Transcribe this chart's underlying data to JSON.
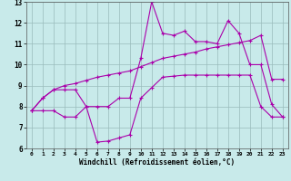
{
  "xlabel": "Windchill (Refroidissement éolien,°C)",
  "bg_color": "#c8eaea",
  "grid_color": "#99bbbb",
  "line_color": "#aa00aa",
  "xlim_min": -0.5,
  "xlim_max": 23.5,
  "ylim_min": 6,
  "ylim_max": 13,
  "yticks": [
    6,
    7,
    8,
    9,
    10,
    11,
    12,
    13
  ],
  "xticks": [
    0,
    1,
    2,
    3,
    4,
    5,
    6,
    7,
    8,
    9,
    10,
    11,
    12,
    13,
    14,
    15,
    16,
    17,
    18,
    19,
    20,
    21,
    22,
    23
  ],
  "line1_x": [
    0,
    1,
    2,
    3,
    4,
    5,
    6,
    7,
    8,
    9,
    10,
    11,
    12,
    13,
    14,
    15,
    16,
    17,
    18,
    19,
    20,
    21,
    22,
    23
  ],
  "line1_y": [
    7.8,
    8.4,
    8.8,
    8.8,
    8.8,
    8.0,
    8.0,
    8.0,
    8.4,
    8.4,
    10.3,
    13.0,
    11.5,
    11.4,
    11.6,
    11.1,
    11.1,
    11.0,
    12.1,
    11.5,
    10.0,
    10.0,
    8.1,
    7.5
  ],
  "line2_x": [
    0,
    1,
    2,
    3,
    4,
    5,
    6,
    7,
    8,
    9,
    10,
    11,
    12,
    13,
    14,
    15,
    16,
    17,
    18,
    19,
    20,
    21,
    22,
    23
  ],
  "line2_y": [
    7.8,
    8.4,
    8.8,
    9.0,
    9.1,
    9.25,
    9.4,
    9.5,
    9.6,
    9.7,
    9.9,
    10.1,
    10.3,
    10.4,
    10.5,
    10.6,
    10.75,
    10.85,
    10.95,
    11.05,
    11.15,
    11.4,
    9.3,
    9.3
  ],
  "line3_x": [
    0,
    1,
    2,
    3,
    4,
    5,
    6,
    7,
    8,
    9,
    10,
    11,
    12,
    13,
    14,
    15,
    16,
    17,
    18,
    19,
    20,
    21,
    22,
    23
  ],
  "line3_y": [
    7.8,
    7.8,
    7.8,
    7.5,
    7.5,
    8.0,
    6.3,
    6.35,
    6.5,
    6.65,
    8.4,
    8.9,
    9.4,
    9.45,
    9.5,
    9.5,
    9.5,
    9.5,
    9.5,
    9.5,
    9.5,
    8.0,
    7.5,
    7.5
  ]
}
